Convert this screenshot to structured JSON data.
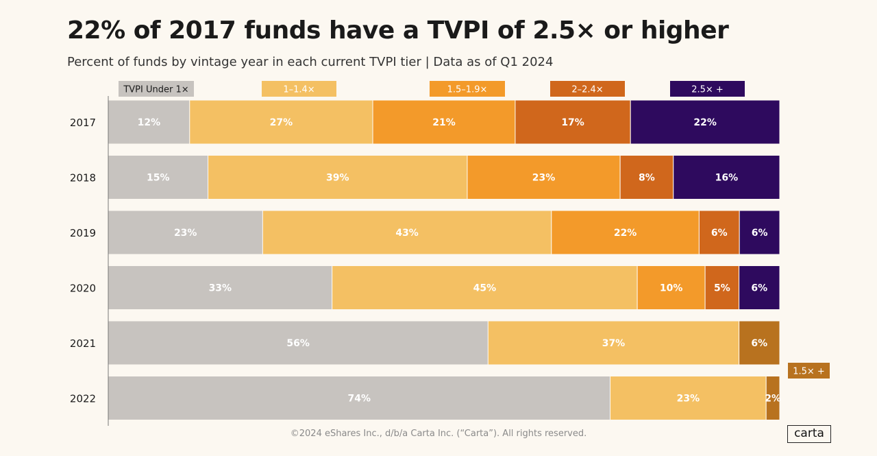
{
  "chart_data": {
    "type": "bar",
    "orientation": "horizontal",
    "stacked": true,
    "title": "22% of 2017 funds have a TVPI of 2.5× or higher",
    "subtitle": "Percent of funds by vintage year in each current TVPI tier  |  Data as of Q1 2024",
    "categories": [
      "2017",
      "2018",
      "2019",
      "2020",
      "2021",
      "2022"
    ],
    "series": [
      {
        "name": "TVPI Under 1×",
        "color": "#c7c3bf",
        "values": [
          12,
          15,
          23,
          33,
          56,
          74
        ],
        "labels": [
          "12%",
          "15%",
          "23%",
          "33%",
          "56%",
          "74%"
        ]
      },
      {
        "name": "1–1.4×",
        "color": "#f4c063",
        "values": [
          27,
          39,
          43,
          45,
          37,
          23
        ],
        "labels": [
          "27%",
          "39%",
          "43%",
          "45%",
          "37%",
          "23%"
        ]
      },
      {
        "name": "1.5–1.9×",
        "color": "#f39a2a",
        "values": [
          21,
          23,
          22,
          10,
          null,
          null
        ],
        "labels": [
          "21%",
          "23%",
          "22%",
          "10%",
          "",
          ""
        ]
      },
      {
        "name": "2–2.4×",
        "color": "#d0671c",
        "values": [
          17,
          8,
          6,
          5,
          null,
          null
        ],
        "labels": [
          "17%",
          "8%",
          "6%",
          "5%",
          "",
          ""
        ]
      },
      {
        "name": "2.5× +",
        "color": "#2e0a5e",
        "values": [
          22,
          16,
          6,
          6,
          null,
          null
        ],
        "labels": [
          "22%",
          "16%",
          "6%",
          "6%",
          "",
          ""
        ]
      },
      {
        "name": "1.5× +",
        "color": "#b8721f",
        "values": [
          null,
          null,
          null,
          null,
          6,
          2
        ],
        "labels": [
          "",
          "",
          "",
          "",
          "6%",
          "2%"
        ]
      }
    ],
    "xlim": [
      0,
      100
    ],
    "grid": false,
    "legend": "top"
  },
  "footer": {
    "copyright": "©2024 eShares Inc., d/b/a Carta Inc. (“Carta”). All rights reserved.",
    "logo": "carta"
  }
}
